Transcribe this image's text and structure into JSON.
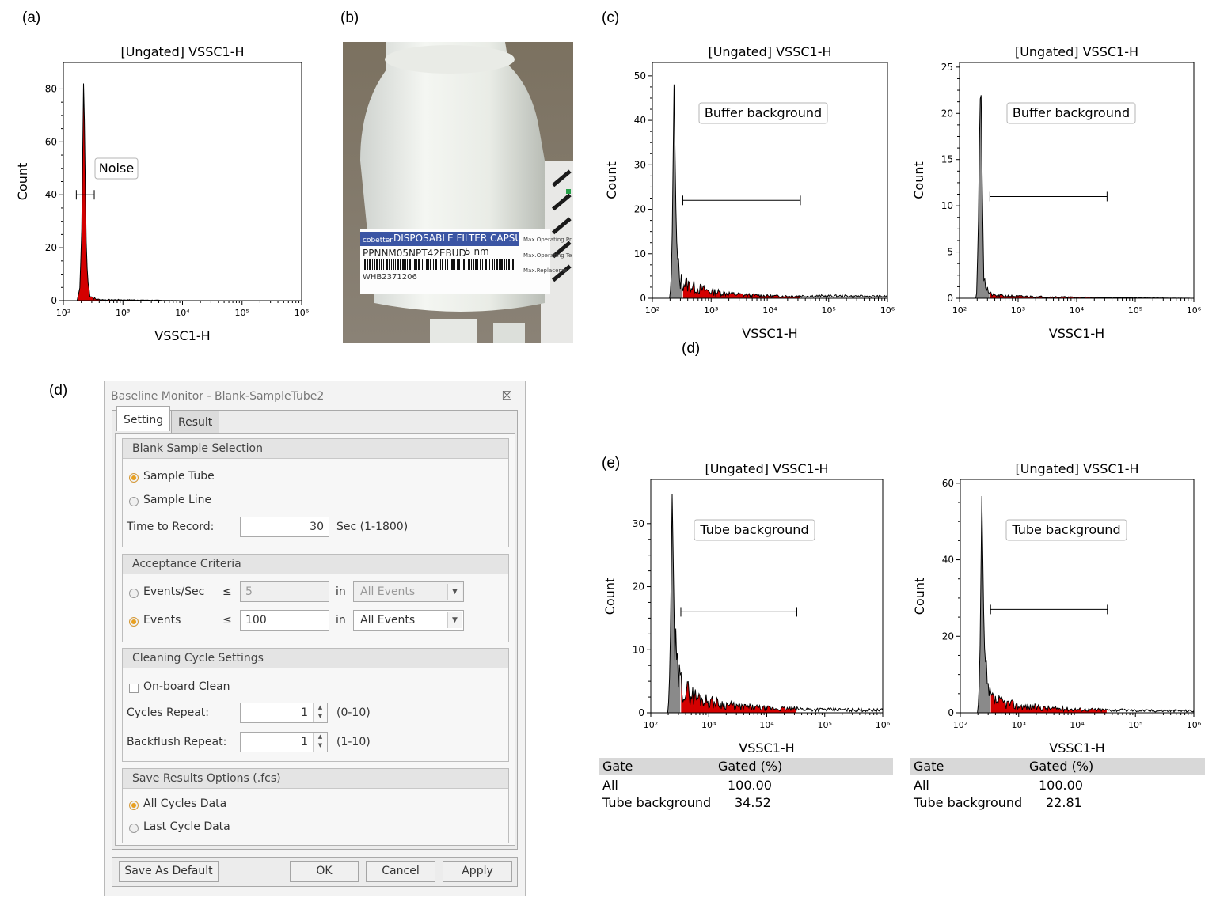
{
  "panel_labels": {
    "a": "(a)",
    "b": "(b)",
    "c": "(c)",
    "d_top": "(d)",
    "d": "(d)",
    "e": "(e)"
  },
  "chart_data": [
    {
      "id": "a",
      "type": "area",
      "title": "[Ungated] VSSC1-H",
      "xlabel": "VSSC1-H",
      "ylabel": "Count",
      "x_scale": "log",
      "xlim": [
        100,
        1000000
      ],
      "ylim": [
        0,
        90
      ],
      "yticks": [
        0,
        20,
        40,
        60,
        80
      ],
      "xtick_labels": [
        "10²",
        "10³",
        "10⁴",
        "10⁵",
        "10⁶"
      ],
      "gate_label": "Noise",
      "gate_range": [
        165,
        330
      ],
      "gate_y": 40,
      "peak": {
        "x": 220,
        "y": 90
      },
      "series": [
        {
          "x": [
            100,
            170,
            190,
            205,
            215,
            220,
            228,
            240,
            255,
            275,
            300,
            350,
            500,
            1000,
            10000,
            1000000
          ],
          "values": [
            0,
            0,
            5,
            30,
            70,
            90,
            60,
            25,
            8,
            3,
            1.5,
            0.5,
            0.3,
            0.3,
            0,
            0
          ]
        }
      ],
      "fill_color": "#e00000",
      "gate_fill": "red"
    },
    {
      "id": "c1",
      "type": "area",
      "title": "[Ungated] VSSC1-H",
      "xlabel": "VSSC1-H",
      "ylabel": "Count",
      "x_scale": "log",
      "xlim": [
        100,
        1000000
      ],
      "ylim": [
        0,
        53
      ],
      "yticks": [
        0,
        10,
        20,
        30,
        40,
        50
      ],
      "xtick_labels": [
        "10²",
        "10³",
        "10⁴",
        "10⁵",
        "10⁶"
      ],
      "gate_label": "Buffer background",
      "gate_range": [
        330,
        33000
      ],
      "gate_y": 22,
      "series": [
        {
          "x": [
            100,
            200,
            215,
            225,
            235,
            245,
            260,
            290,
            330,
            400,
            600,
            1000,
            3000,
            10000,
            100000,
            1000000
          ],
          "values": [
            0,
            0,
            8,
            30,
            50,
            28,
            10,
            4,
            3.5,
            3,
            2.2,
            1.5,
            0.8,
            0.5,
            0.5,
            0.4
          ]
        }
      ]
    },
    {
      "id": "c2",
      "type": "area",
      "title": "[Ungated] VSSC1-H",
      "xlabel": "VSSC1-H",
      "ylabel": "Count",
      "x_scale": "log",
      "xlim": [
        100,
        1000000
      ],
      "ylim": [
        0,
        25.5
      ],
      "yticks": [
        0,
        5,
        10,
        15,
        20,
        25
      ],
      "xtick_labels": [
        "10²",
        "10³",
        "10⁴",
        "10⁵",
        "10⁶"
      ],
      "gate_label": "Buffer background",
      "gate_range": [
        330,
        33000
      ],
      "gate_y": 11,
      "series": [
        {
          "x": [
            100,
            195,
            210,
            222,
            232,
            242,
            255,
            280,
            320,
            400,
            1000,
            10000,
            1000000
          ],
          "values": [
            0,
            0,
            8,
            20,
            24,
            14,
            5,
            1.5,
            0.5,
            0.3,
            0.2,
            0.1,
            0
          ]
        }
      ]
    },
    {
      "id": "e1",
      "type": "area",
      "title": "[Ungated] VSSC1-H",
      "xlabel": "VSSC1-H",
      "ylabel": "Count",
      "x_scale": "log",
      "xlim": [
        100,
        1000000
      ],
      "ylim": [
        0,
        37
      ],
      "yticks": [
        0,
        10,
        20,
        30
      ],
      "xtick_labels": [
        "10²",
        "10³",
        "10⁴",
        "10⁵",
        "10⁶"
      ],
      "gate_label": "Tube background",
      "gate_range": [
        330,
        33000
      ],
      "gate_y": 16,
      "series": [
        {
          "x": [
            100,
            200,
            215,
            225,
            235,
            245,
            260,
            290,
            330,
            400,
            600,
            1000,
            3000,
            10000,
            100000,
            1000000
          ],
          "values": [
            0,
            0,
            8,
            22,
            36,
            22,
            10,
            6,
            4.5,
            3.5,
            2.5,
            1.8,
            1.0,
            0.7,
            0.5,
            0.4
          ]
        }
      ]
    },
    {
      "id": "e2",
      "type": "area",
      "title": "[Ungated] VSSC1-H",
      "xlabel": "VSSC1-H",
      "ylabel": "Count",
      "x_scale": "log",
      "xlim": [
        100,
        1000000
      ],
      "ylim": [
        0,
        61
      ],
      "yticks": [
        0,
        20,
        40,
        60
      ],
      "xtick_labels": [
        "10²",
        "10³",
        "10⁴",
        "10⁵",
        "10⁶"
      ],
      "gate_label": "Tube background",
      "gate_range": [
        330,
        33000
      ],
      "gate_y": 27,
      "series": [
        {
          "x": [
            100,
            200,
            215,
            225,
            235,
            245,
            260,
            290,
            330,
            400,
            600,
            1000,
            3000,
            10000,
            100000,
            1000000
          ],
          "values": [
            0,
            0,
            10,
            35,
            59,
            35,
            14,
            6,
            4,
            3,
            2.5,
            1.8,
            1.2,
            0.9,
            0.6,
            0.5
          ]
        }
      ]
    }
  ],
  "stats_tables": [
    {
      "headers": [
        "Gate",
        "Gated (%)"
      ],
      "rows": [
        [
          "All",
          "100.00"
        ],
        [
          "Tube background",
          "34.52"
        ]
      ]
    },
    {
      "headers": [
        "Gate",
        "Gated (%)"
      ],
      "rows": [
        [
          "All",
          "100.00"
        ],
        [
          "Tube background",
          "22.81"
        ]
      ]
    }
  ],
  "dialog": {
    "title": "Baseline Monitor - Blank-SampleTube2",
    "close_glyph": "☒",
    "tabs": {
      "setting": "Setting",
      "result": "Result"
    },
    "blank": {
      "header": "Blank Sample Selection",
      "opt_tube": "Sample Tube",
      "opt_line": "Sample Line",
      "time_label": "Time to Record:",
      "time_value": "30",
      "time_unit": "Sec  (1-1800)"
    },
    "accept": {
      "header": "Acceptance Criteria",
      "events_sec_label": "Events/Sec",
      "events_sec_value": "5",
      "events_label": "Events",
      "events_value": "100",
      "le": "≤",
      "in": "in",
      "select_1": "All Events",
      "select_2": "All Events"
    },
    "clean": {
      "header": "Cleaning Cycle Settings",
      "onboard": "On-board Clean",
      "cycles_label": "Cycles Repeat:",
      "cycles_value": "1",
      "cycles_range": "(0-10)",
      "backflush_label": "Backflush Repeat:",
      "backflush_value": "1",
      "backflush_range": "(1-10)"
    },
    "save": {
      "header": "Save Results Options (.fcs)",
      "opt_all": "All Cycles Data",
      "opt_last": "Last Cycle Data"
    },
    "buttons": {
      "default": "Save As Default",
      "ok": "OK",
      "cancel": "Cancel",
      "apply": "Apply"
    }
  },
  "photo": {
    "label_brand": "DISPOSABLE FILTER CAPSULE",
    "label_logo": "cobetter",
    "label_part": "PPNNM05NPT42EBUD",
    "label_size": "5 nm",
    "label_lot": "WHB2371206",
    "label_spec_1": "Max.Operating Pr",
    "label_spec_2": "Max.Operating Te",
    "label_spec_3": "Max.Replaceme"
  },
  "colors": {
    "hist_gray": "#8a8a8a",
    "hist_red": "#d40000",
    "stat_head_bg": "#d8d8d8"
  }
}
